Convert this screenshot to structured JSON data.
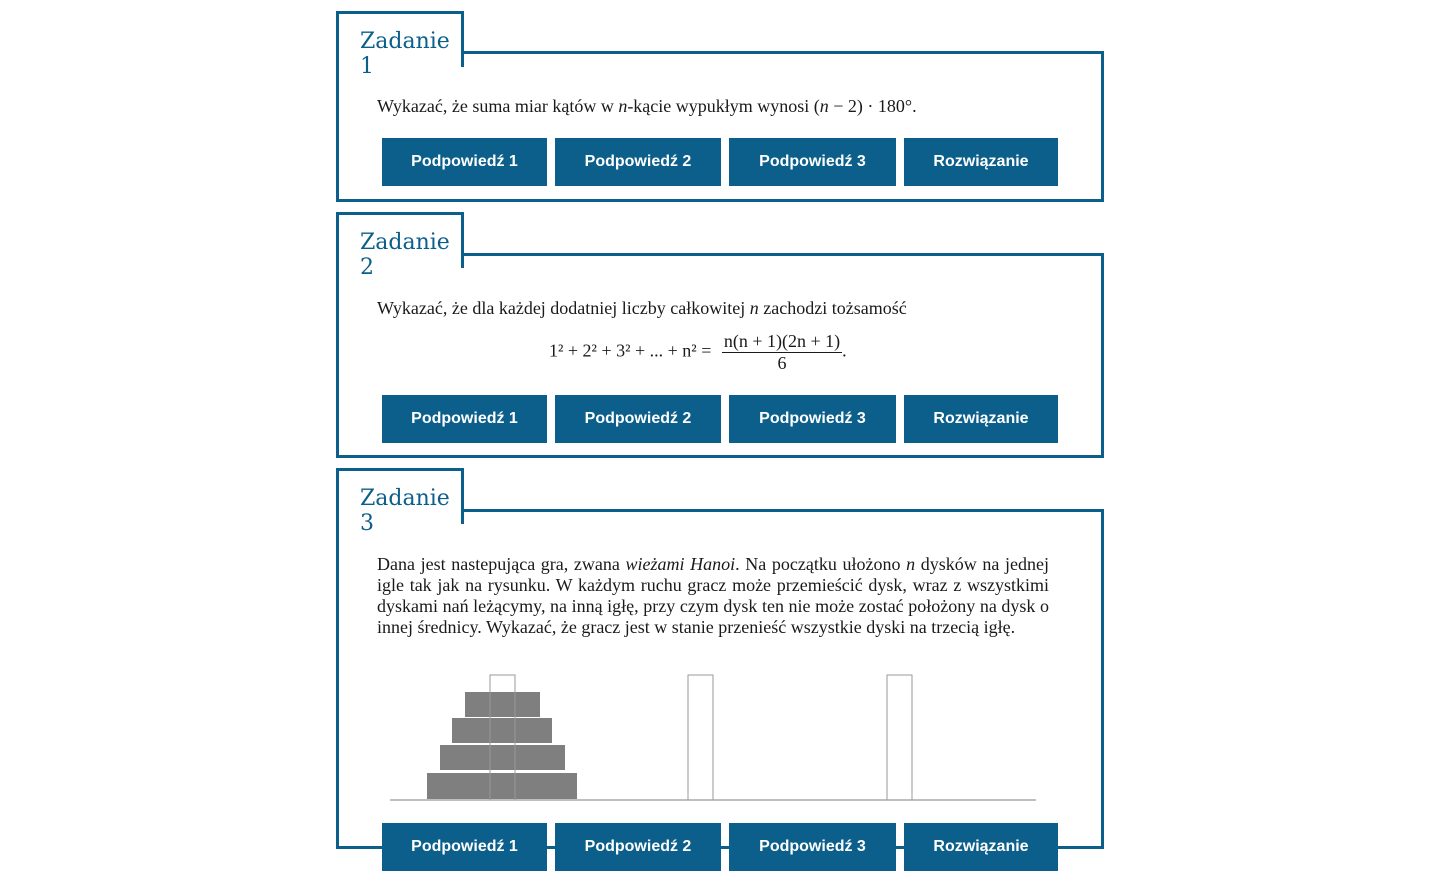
{
  "tasks": [
    {
      "title": "Zadanie 1",
      "text_a": "Wykazać, że suma miar kątów w ",
      "var_n": "n",
      "text_b": "-kącie wypukłym wynosi (",
      "var_n2": "n",
      "text_c": " − 2) · 180°.",
      "buttons": [
        "Podpowiedź 1",
        "Podpowiedź 2",
        "Podpowiedź 3",
        "Rozwiązanie"
      ]
    },
    {
      "title": "Zadanie 2",
      "text_a": "Wykazać, że dla każdej dodatniej liczby całkowitej ",
      "var_n": "n",
      "text_b": " zachodzi tożsamość",
      "formula_lhs": "1² + 2² + 3² + ... + n² =",
      "formula_num": "n(n + 1)(2n + 1)",
      "formula_den": "6",
      "formula_end": ".",
      "buttons": [
        "Podpowiedź 1",
        "Podpowiedź 2",
        "Podpowiedź 3",
        "Rozwiązanie"
      ]
    },
    {
      "title": "Zadanie 3",
      "text_a": "Dana jest nastepująca gra, zwana ",
      "italic": "wieżami Hanoi",
      "text_b": ". Na początku ułożono ",
      "var_n": "n",
      "text_c": " dysków na jednej igle tak jak na rysunku. W każdym ruchu gracz może przemieścić dysk, wraz z wszystkimi dyskami nań leżącymy, na inną igłę, przy czym dysk ten nie może zostać położony na dysk o innej średnicy. Wykazać, że gracz jest w stanie przenieść wszystkie dyski na trzecią igłę.",
      "buttons": [
        "Podpowiedź 1",
        "Podpowiedź 2",
        "Podpowiedź 3",
        "Rozwiązanie"
      ]
    }
  ],
  "colors": {
    "accent": "#0b5f8a",
    "disk": "#7f7f7f",
    "peg": "#999999"
  }
}
